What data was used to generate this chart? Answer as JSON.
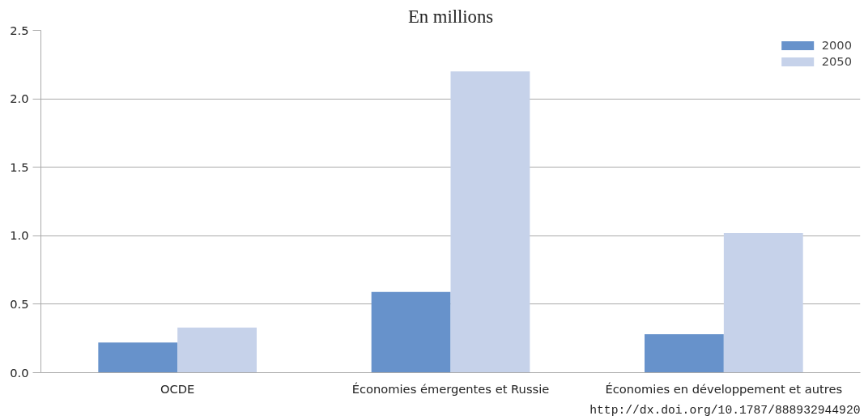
{
  "chart_data": {
    "type": "bar",
    "title": "En millions",
    "categories": [
      "OCDE",
      "Économies émergentes et Russie",
      "Économies en développement et autres"
    ],
    "series": [
      {
        "name": "2000",
        "color": "#6792cb",
        "values": [
          0.22,
          0.59,
          0.28
        ]
      },
      {
        "name": "2050",
        "color": "#c6d2ea",
        "values": [
          0.33,
          2.2,
          1.02
        ]
      }
    ],
    "ylim": [
      0,
      2.5
    ],
    "yticks": [
      {
        "value": 0,
        "label": "0.0"
      },
      {
        "value": 0.5,
        "label": "0.5"
      },
      {
        "value": 1,
        "label": "1.0"
      },
      {
        "value": 1.5,
        "label": "1.5"
      },
      {
        "value": 2,
        "label": "2.0"
      },
      {
        "value": 2.5,
        "label": "2.5"
      }
    ],
    "grid": "y",
    "legend": "top right",
    "annotations": [
      "http://dx.doi.org/10.1787/888932944920"
    ]
  }
}
